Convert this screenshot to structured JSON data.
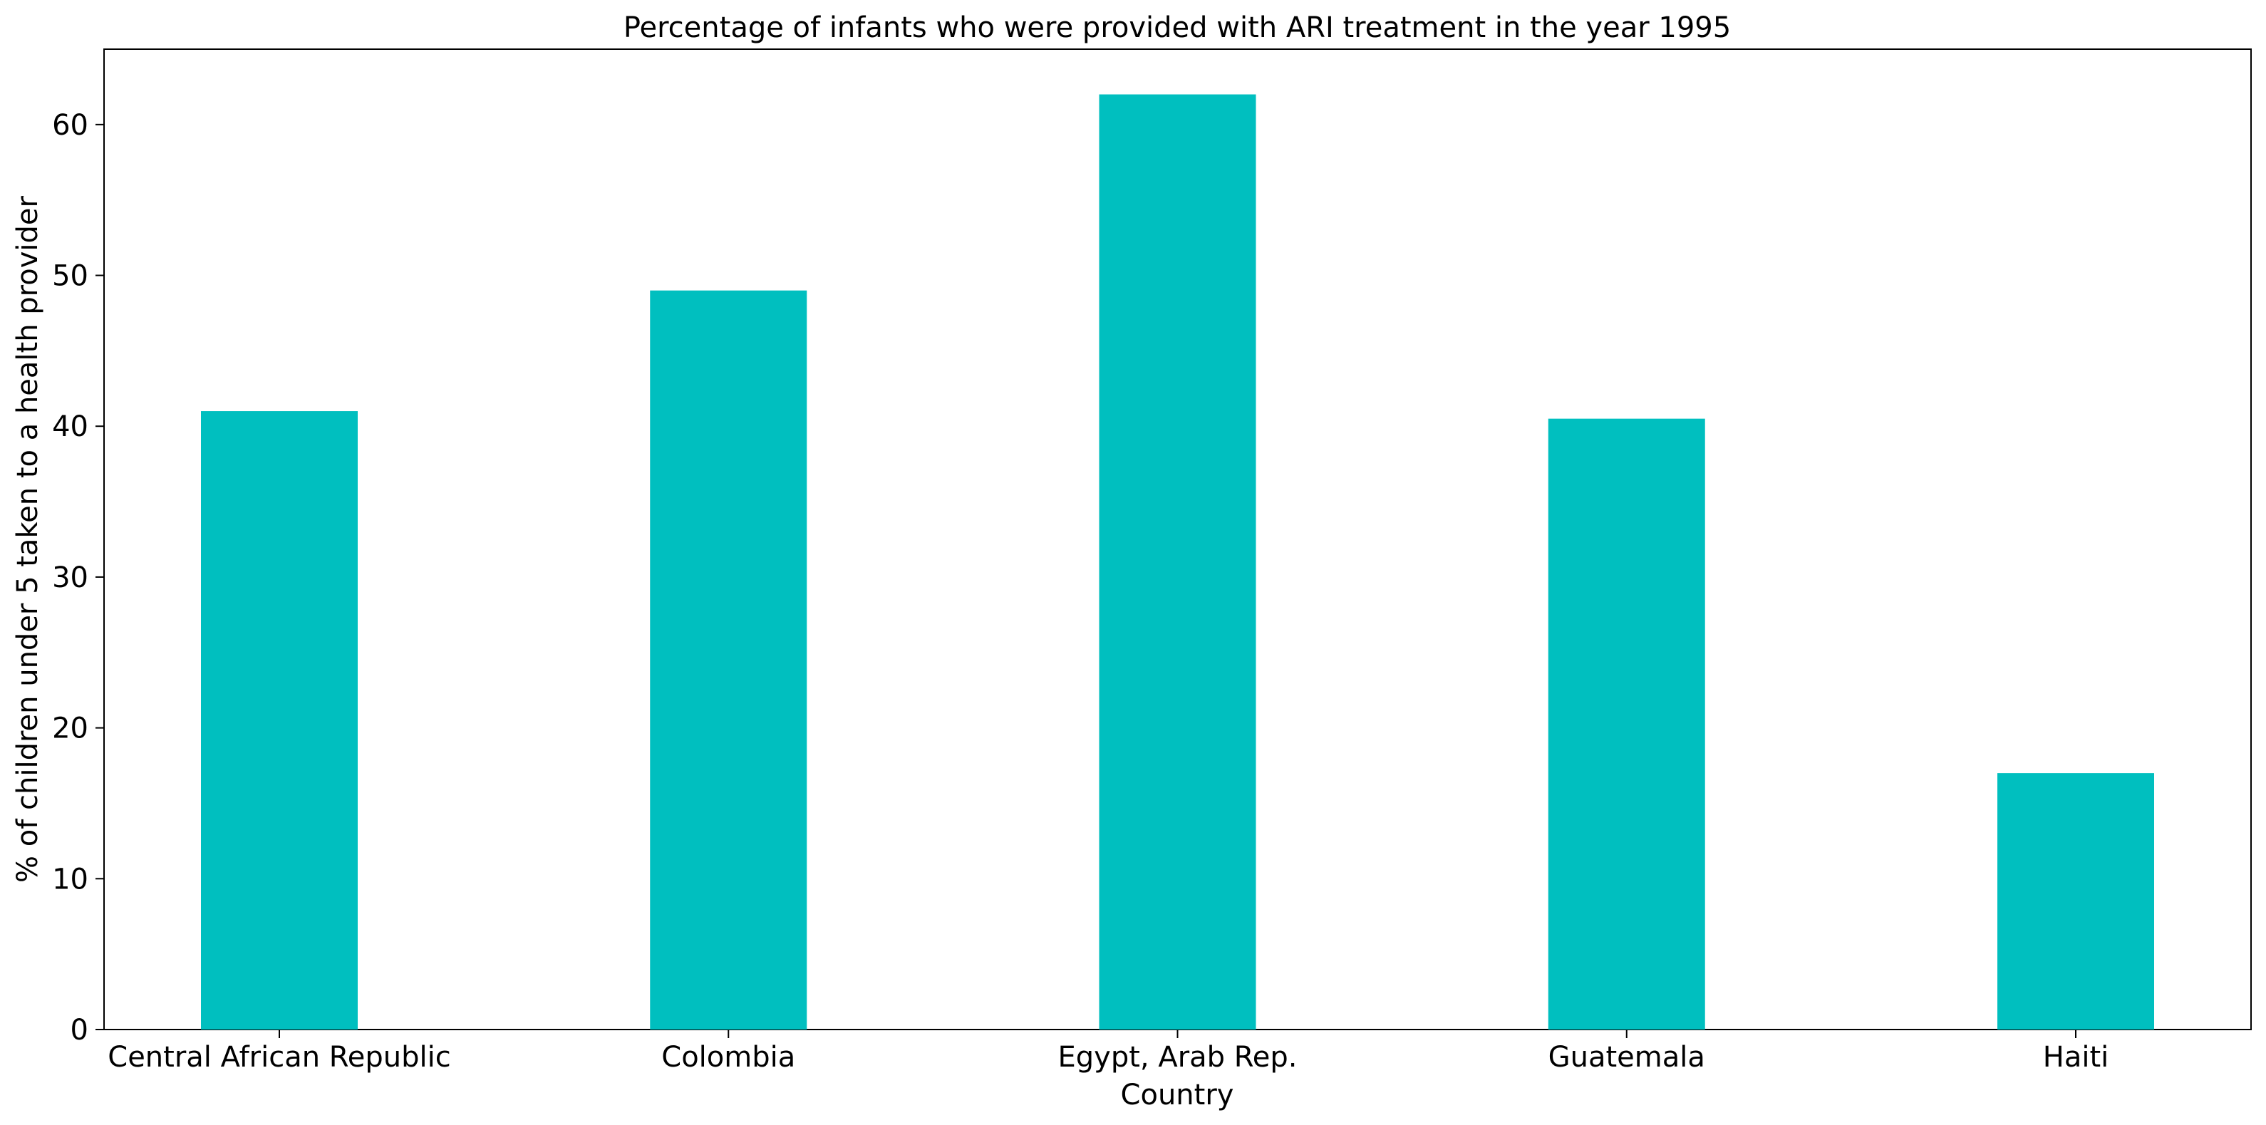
{
  "chart_data": {
    "type": "bar",
    "title": "Percentage of infants who were provided with ARI treatment in the year 1995",
    "xlabel": "Country",
    "ylabel": "% of children under 5 taken to a health provider",
    "categories": [
      "Central African Republic",
      "Colombia",
      "Egypt, Arab Rep.",
      "Guatemala",
      "Haiti"
    ],
    "values": [
      41,
      49,
      62,
      40.5,
      17
    ],
    "ylim": [
      0,
      65
    ],
    "yticks": [
      0,
      10,
      20,
      30,
      40,
      50,
      60
    ],
    "grid": false,
    "legend": "none",
    "bar_color": "#00BFBF"
  }
}
